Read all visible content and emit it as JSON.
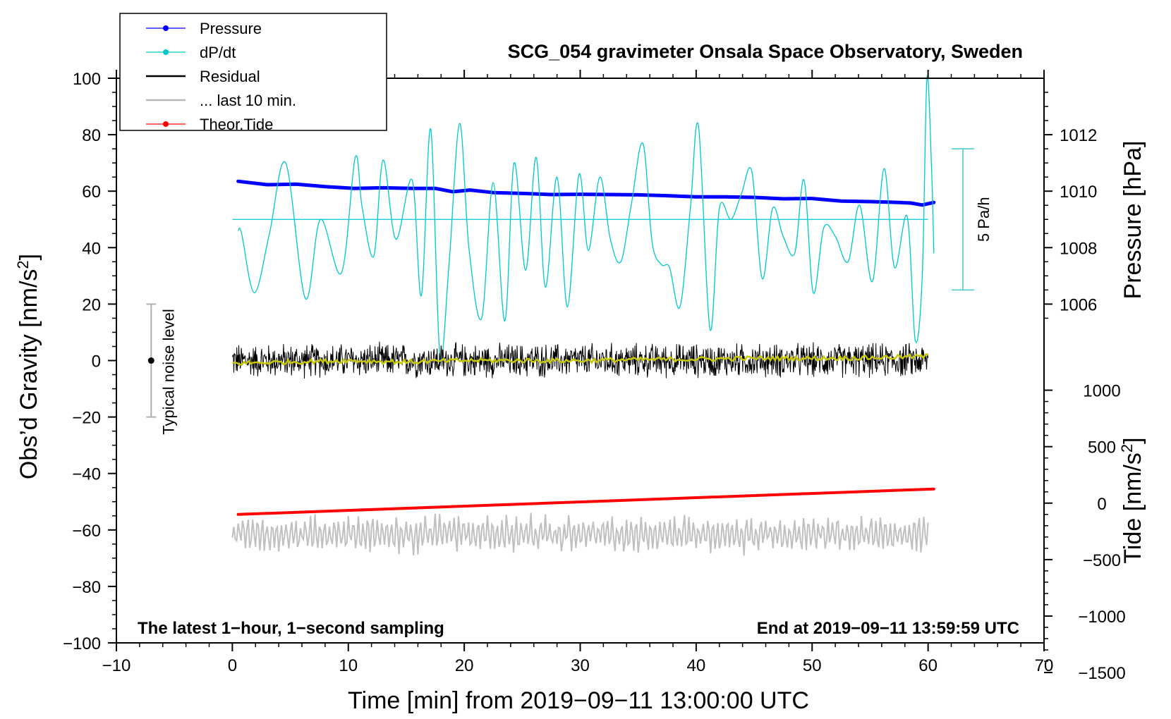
{
  "chart_data": {
    "type": "line",
    "title": "SCG_054 gravimeter Onsala Space Observatory, Sweden",
    "xlabel": "Time [min] from 2019−09−11 13:00:00 UTC",
    "ylabel_left": "Obs’d Gravity [nm/s",
    "ylabel_left_sup": "2",
    "ylabel_left_end": "]",
    "ylabel_right_pressure": "Pressure [hPa]",
    "ylabel_right_tide": "Tide [nm/s",
    "ylabel_right_tide_sup": "2",
    "ylabel_right_tide_end": "]",
    "xlim": [
      -10,
      70
    ],
    "ylim_left": [
      -100,
      100
    ],
    "x_ticks": [
      -10,
      0,
      10,
      20,
      30,
      40,
      50,
      60,
      70
    ],
    "x_tick_labels": [
      "−10",
      "0",
      "10",
      "20",
      "30",
      "40",
      "50",
      "60",
      "70"
    ],
    "y_left_ticks": [
      -100,
      -80,
      -60,
      -40,
      -20,
      0,
      20,
      40,
      60,
      80,
      100
    ],
    "y_left_tick_labels": [
      "−100",
      "−80",
      "−60",
      "−40",
      "−20",
      "0",
      "20",
      "40",
      "60",
      "80",
      "100"
    ],
    "pressure_ticks": [
      1006,
      1008,
      1010,
      1012
    ],
    "pressure_tick_labels": [
      "1006",
      "1008",
      "1010",
      "1012"
    ],
    "pressure_scale": {
      "ref_hpa": 1006,
      "ref_gravity": 20,
      "units_per_hpa": 10
    },
    "tide_ticks": [
      -1500,
      -1000,
      -500,
      0,
      500,
      1000
    ],
    "tide_tick_labels": [
      "−1500",
      "−1000",
      "−500",
      "0",
      "500",
      "1000"
    ],
    "tide_scale": {
      "ref_tide": 0,
      "ref_gravity": -50.5,
      "units_per_gravity": 25
    },
    "legend": [
      {
        "label": "Pressure",
        "color": "#0000ff",
        "marker": true
      },
      {
        "label": "dP/dt",
        "color": "#00c8c8",
        "marker": true
      },
      {
        "label": "Residual",
        "color": "#000000",
        "marker": false
      },
      {
        "label": "... last 10 min.",
        "color": "#c0c0c0",
        "marker": false
      },
      {
        "label": "Theor.Tide",
        "color": "#ff0000",
        "marker": true
      }
    ],
    "series": [
      {
        "name": "Pressure",
        "color": "#0000ff",
        "unit": "hPa",
        "x": [
          0.5,
          3,
          5.5,
          8,
          10.5,
          13,
          15.5,
          17.5,
          19,
          20.5,
          22.5,
          25,
          27.5,
          30,
          32.5,
          35,
          37.5,
          40,
          42.5,
          45,
          47.5,
          50,
          52.5,
          55,
          57.5,
          58.5,
          59.5,
          60.5
        ],
        "values": [
          1010.35,
          1010.23,
          1010.25,
          1010.16,
          1010.1,
          1010.12,
          1010.1,
          1010.1,
          1009.98,
          1010.04,
          1009.95,
          1009.92,
          1009.88,
          1009.89,
          1009.88,
          1009.87,
          1009.84,
          1009.8,
          1009.8,
          1009.78,
          1009.73,
          1009.74,
          1009.65,
          1009.63,
          1009.6,
          1009.58,
          1009.51,
          1009.6
        ]
      },
      {
        "name": "dP/dt",
        "color": "#00c8c8",
        "baseline_gravity": 50,
        "x": [
          0.5,
          0.8,
          1.9,
          3.2,
          4.6,
          6.3,
          7.6,
          9.4,
          10.6,
          11.2,
          12.2,
          13.0,
          14.1,
          15.5,
          16.3,
          17.1,
          17.9,
          18.7,
          19.6,
          20.4,
          21.5,
          22.5,
          23.5,
          24.3,
          25.3,
          26.2,
          27.0,
          28.0,
          28.9,
          29.9,
          30.7,
          31.7,
          32.6,
          33.5,
          34.4,
          35.4,
          36.2,
          37.0,
          37.7,
          38.6,
          39.5,
          40.2,
          41.2,
          42.0,
          43.0,
          43.9,
          44.8,
          45.7,
          46.6,
          47.5,
          48.5,
          49.3,
          50.1,
          51.0,
          52.0,
          53.1,
          54.1,
          55.2,
          56.2,
          57.1,
          58.2,
          58.9,
          59.5,
          59.9,
          60.3,
          60.5
        ],
        "values": [
          46,
          45,
          24,
          45,
          70,
          22,
          50,
          31,
          72,
          54,
          37,
          71,
          43,
          64,
          23,
          82,
          2,
          35,
          84,
          40,
          15,
          63,
          14,
          70,
          32,
          72,
          26,
          65,
          19,
          66,
          39,
          65,
          43,
          35,
          55,
          77,
          42,
          34,
          33,
          19,
          54,
          83,
          11,
          54,
          50,
          59,
          67,
          29,
          54,
          44,
          38,
          64,
          24,
          47,
          44,
          35,
          55,
          28,
          68,
          33,
          51,
          7,
          30,
          100,
          68,
          38
        ]
      },
      {
        "name": "Residual",
        "color": "#000000",
        "x_range": [
          0,
          60
        ],
        "amplitude": 7,
        "range": [
          -15,
          12
        ]
      },
      {
        "name": "Residual smoothed",
        "color": "#c8c800",
        "x": [
          0,
          5,
          10,
          15,
          20,
          25,
          30,
          35,
          40,
          45,
          50,
          55,
          60
        ],
        "values": [
          -1,
          -0.5,
          0,
          -0.5,
          0,
          0,
          0,
          0.3,
          0.5,
          0.8,
          0.8,
          1,
          1.5
        ]
      },
      {
        "name": "... last 10 min.",
        "color": "#c0c0c0",
        "x_range": [
          0,
          60
        ],
        "center": -61.5,
        "amplitude": 5,
        "range": [
          -74,
          -51
        ]
      },
      {
        "name": "Theor.Tide",
        "color": "#ff0000",
        "unit": "nm/s2",
        "x": [
          0.5,
          60.5
        ],
        "values": [
          -54.5,
          -45.5
        ]
      }
    ],
    "noise_bar": {
      "label": "Typical noise level",
      "x": -7,
      "center": 0,
      "range": [
        -20,
        20
      ]
    },
    "rate_bar": {
      "label": "5 Pa/h",
      "pressure_range": [
        1006.5,
        1011.5
      ]
    },
    "annotations": {
      "bottom_left": "The latest 1−hour, 1−second sampling",
      "bottom_right": "End at 2019−09−11 13:59:59 UTC"
    }
  }
}
